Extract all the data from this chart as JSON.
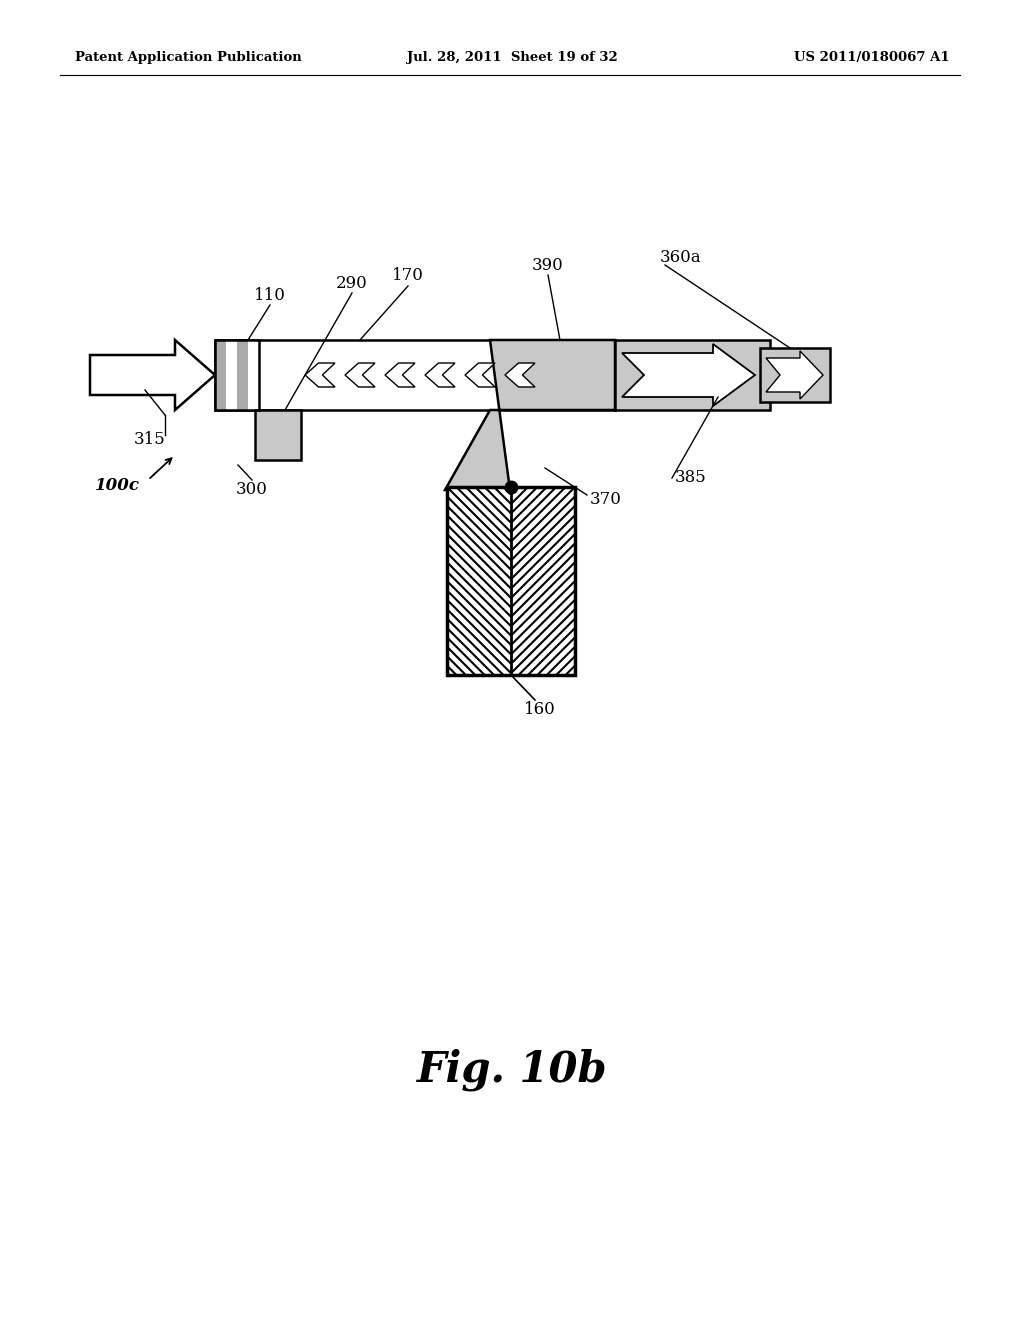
{
  "bg_color": "#ffffff",
  "header_left": "Patent Application Publication",
  "header_mid": "Jul. 28, 2011  Sheet 19 of 32",
  "header_right": "US 2011/0180067 A1",
  "fig_label": "Fig. 10b",
  "gray_light": "#c8c8c8",
  "gray_med": "#aaaaaa",
  "black": "#000000"
}
